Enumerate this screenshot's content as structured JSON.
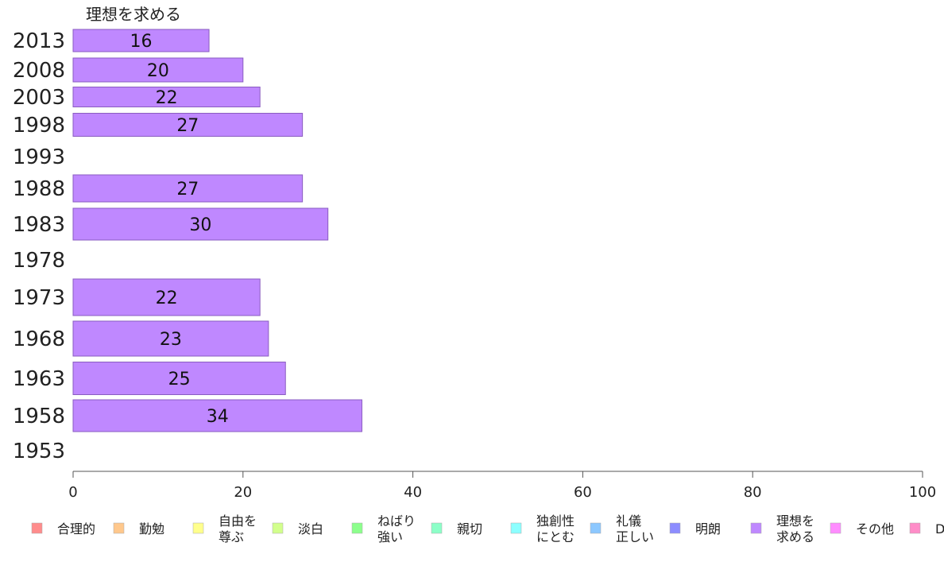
{
  "chart_data": {
    "type": "bar",
    "orientation": "horizontal",
    "title": "理想を求める",
    "categories": [
      "2013",
      "2008",
      "2003",
      "1998",
      "1993",
      "1988",
      "1983",
      "1978",
      "1973",
      "1968",
      "1963",
      "1958",
      "1953"
    ],
    "series": [
      {
        "name": "理想を求める",
        "color": "#bf88ff",
        "values": [
          16,
          20,
          22,
          27,
          null,
          27,
          30,
          null,
          22,
          23,
          25,
          34,
          null
        ]
      }
    ],
    "xlim": [
      0,
      100
    ],
    "xticks": [
      "0",
      "20",
      "40",
      "60",
      "80",
      "100"
    ],
    "grid": false,
    "legend_position": "bottom",
    "legend": [
      {
        "label": "合理的",
        "color": "#ff8c8c"
      },
      {
        "label": "勤勉",
        "color": "#ffc88c"
      },
      {
        "label": "自由を\n尊ぶ",
        "color": "#ffff8c"
      },
      {
        "label": "淡白",
        "color": "#d2ff8c"
      },
      {
        "label": "ねばり\n強い",
        "color": "#8cff8c"
      },
      {
        "label": "親切",
        "color": "#8cffc8"
      },
      {
        "label": "独創性\nにとむ",
        "color": "#8cffff"
      },
      {
        "label": "礼儀\n正しい",
        "color": "#8cc8ff"
      },
      {
        "label": "明朗",
        "color": "#8c8cff"
      },
      {
        "label": "理想を\n求める",
        "color": "#bf88ff"
      },
      {
        "label": "その他",
        "color": "#ff8cff"
      },
      {
        "label": "D",
        "color": "#ff8cc8"
      }
    ]
  }
}
